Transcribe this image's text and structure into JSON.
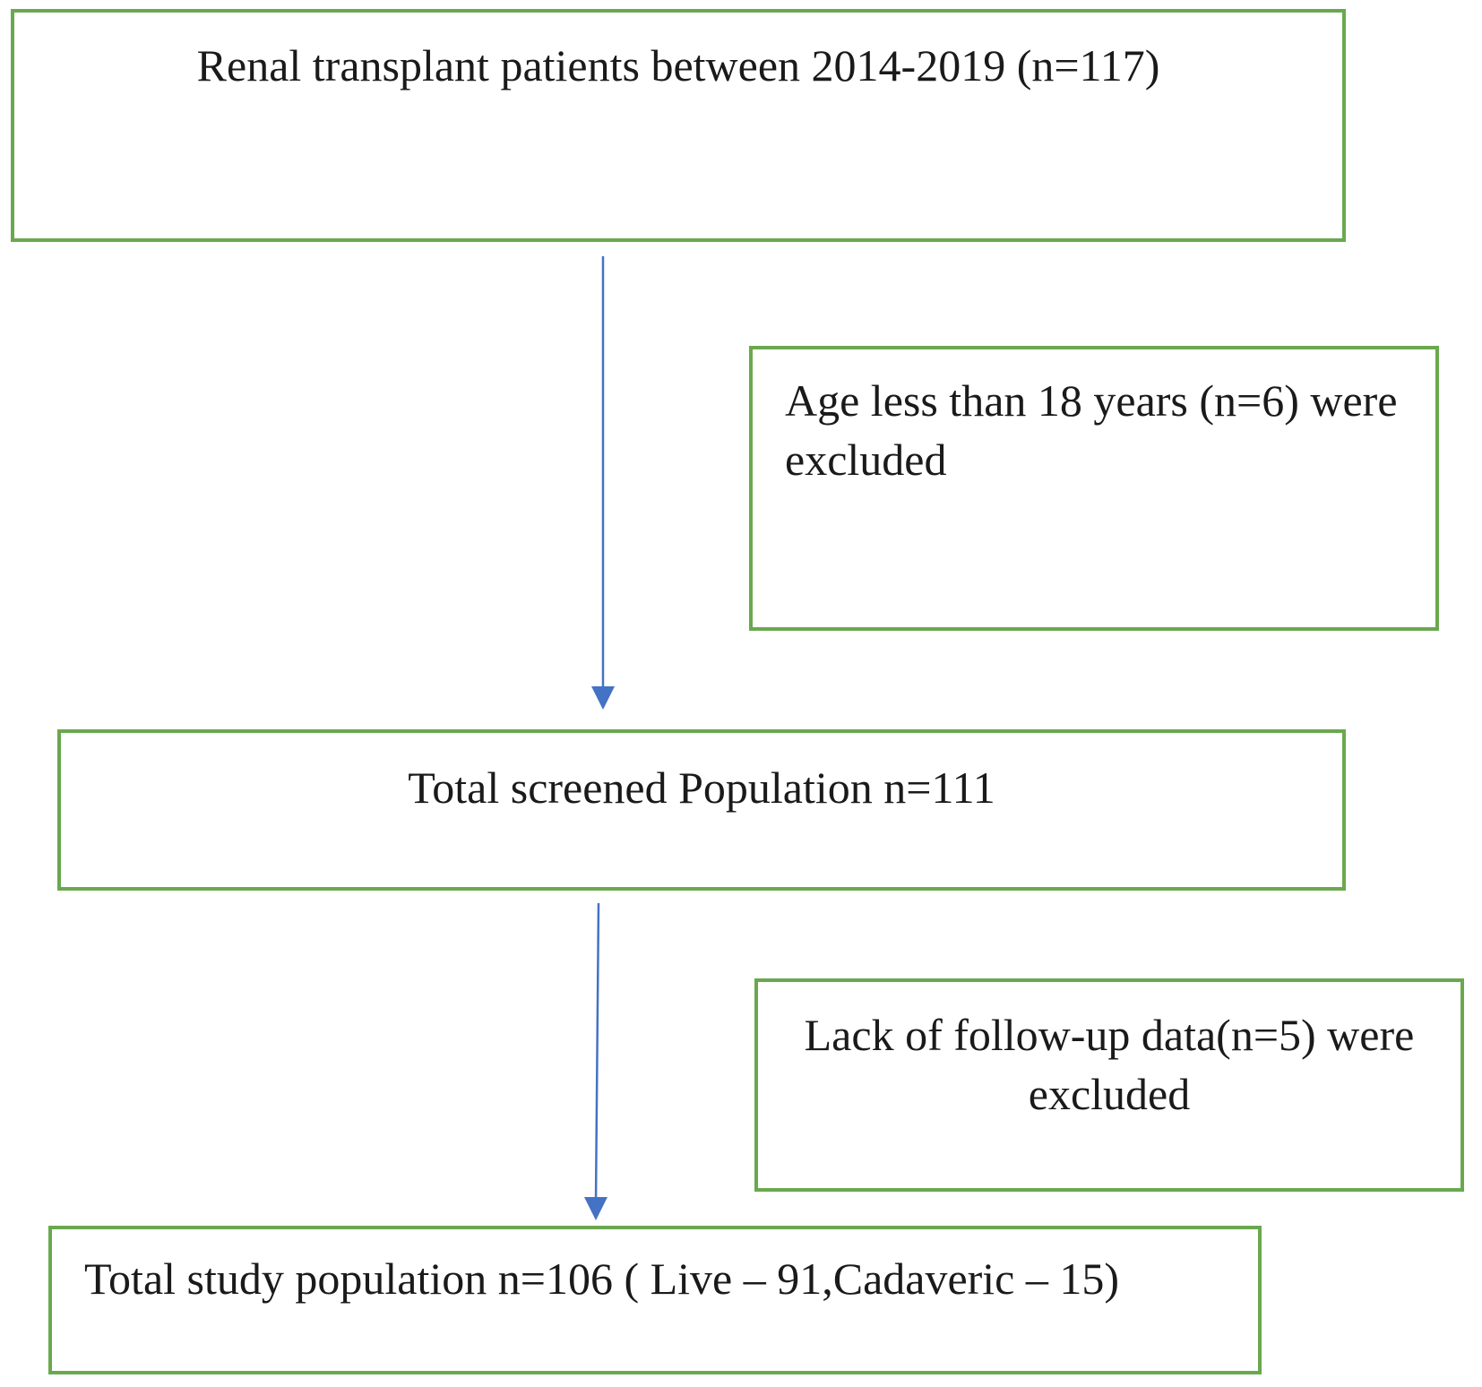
{
  "boxes": {
    "initial": "Renal transplant patients between 2014-2019 (n=117)",
    "exclusion_age": "Age less than 18 years (n=6) were excluded",
    "screened": "Total screened Population n=111",
    "exclusion_followup": "Lack of follow-up data(n=5) were excluded",
    "study_population": "Total study population n=106 ( Live – 91,Cadaveric – 15)"
  },
  "colors": {
    "box_border": "#6aa84f",
    "arrow": "#4472c4",
    "text": "#1a1a1a"
  }
}
